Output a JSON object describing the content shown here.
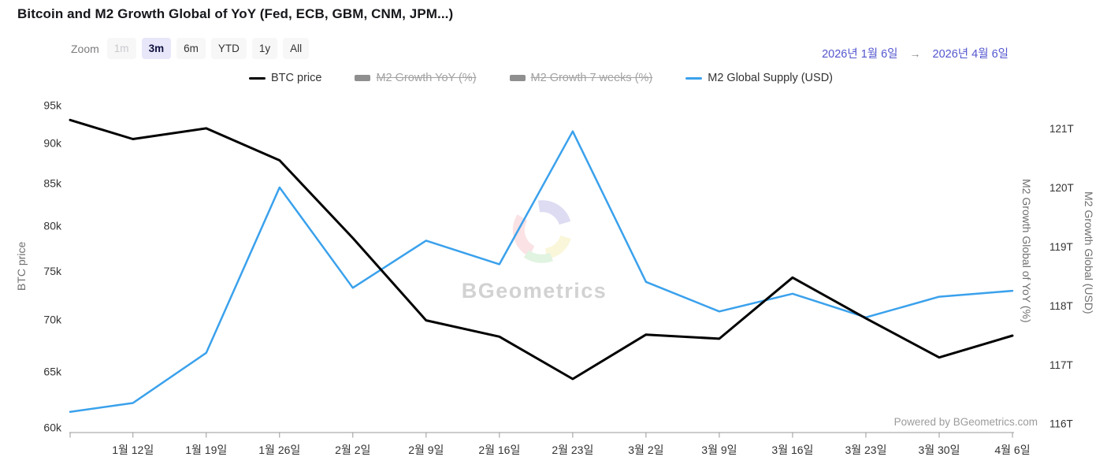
{
  "title": "Bitcoin and M2 Growth Global of YoY (Fed, ECB, GBM, CNM, JPM...)",
  "toolbar": {
    "zoom_label": "Zoom",
    "buttons": [
      {
        "label": "1m",
        "state": "disabled"
      },
      {
        "label": "3m",
        "state": "selected"
      },
      {
        "label": "6m",
        "state": "normal"
      },
      {
        "label": "YTD",
        "state": "normal"
      },
      {
        "label": "1y",
        "state": "normal"
      },
      {
        "label": "All",
        "state": "normal"
      }
    ]
  },
  "date_range": {
    "from": "2026년 1월 6일",
    "arrow": "→",
    "to": "2026년 4월 6일"
  },
  "legend": [
    {
      "label": "BTC price",
      "marker": "line",
      "color": "#000000",
      "active": true
    },
    {
      "label": "M2 Growth YoY (%)",
      "marker": "bar",
      "color": "#8f8f8f",
      "active": false
    },
    {
      "label": "M2 Growth 7 weeks (%)",
      "marker": "bar",
      "color": "#8f8f8f",
      "active": false
    },
    {
      "label": "M2 Global Supply (USD)",
      "marker": "line",
      "color": "#3aa1ec",
      "active": true
    }
  ],
  "watermark": {
    "brand": "BGeometrics"
  },
  "powered_by": "Powered by BGeometrics.com",
  "chart_data": {
    "type": "line",
    "title": "Bitcoin and M2 Growth Global of YoY (Fed, ECB, GBM, CNM, JPM...)",
    "x_axis": {
      "point_dates": [
        "1월 6일",
        "1월 12일",
        "1월 19일",
        "1월 26일",
        "2월 2일",
        "2월 9일",
        "2월 16일",
        "2월 23일",
        "3월 2일",
        "3월 9일",
        "3월 16일",
        "3월 23일",
        "3월 30일",
        "4월 6일"
      ],
      "point_days": [
        0,
        6,
        13,
        20,
        27,
        34,
        41,
        48,
        55,
        62,
        69,
        76,
        83,
        90
      ],
      "ticks": [
        {
          "day": 6,
          "label": "1월 12일"
        },
        {
          "day": 13,
          "label": "1월 19일"
        },
        {
          "day": 20,
          "label": "1월 26일"
        },
        {
          "day": 27,
          "label": "2월 2일"
        },
        {
          "day": 34,
          "label": "2월 9일"
        },
        {
          "day": 41,
          "label": "2월 16일"
        },
        {
          "day": 48,
          "label": "2월 23일"
        },
        {
          "day": 55,
          "label": "3월 2일"
        },
        {
          "day": 62,
          "label": "3월 9일"
        },
        {
          "day": 69,
          "label": "3월 16일"
        },
        {
          "day": 76,
          "label": "3월 23일"
        },
        {
          "day": 83,
          "label": "3월 30일"
        },
        {
          "day": 90,
          "label": "4월 6일"
        }
      ]
    },
    "y_axis_left": {
      "title": "BTC price",
      "scale": "logarithmic",
      "ticks": [
        {
          "value": 60000,
          "label": "60k"
        },
        {
          "value": 65000,
          "label": "65k"
        },
        {
          "value": 70000,
          "label": "70k"
        },
        {
          "value": 75000,
          "label": "75k"
        },
        {
          "value": 80000,
          "label": "80k"
        },
        {
          "value": 85000,
          "label": "85k"
        },
        {
          "value": 90000,
          "label": "90k"
        },
        {
          "value": 95000,
          "label": "95k"
        }
      ],
      "range": [
        60000,
        96500
      ]
    },
    "y_axis_right": {
      "title": "M2 Growth Global (USD)",
      "scale": "linear",
      "unit": "trillion USD",
      "ticks": [
        {
          "value": 116,
          "label": "116T"
        },
        {
          "value": 117,
          "label": "117T"
        },
        {
          "value": 118,
          "label": "118T"
        },
        {
          "value": 119,
          "label": "119T"
        },
        {
          "value": 120,
          "label": "120T"
        },
        {
          "value": 121,
          "label": "121T"
        }
      ],
      "range": [
        115.8,
        121.2
      ]
    },
    "y_axis_right_inner": {
      "title": "M2 Growth Global of YoY (%)",
      "note": "axis title shown for the two hidden (toggled-off) series"
    },
    "series": [
      {
        "name": "BTC price",
        "axis": "left",
        "color": "#000000",
        "visible": true,
        "values": [
          93000,
          90500,
          91900,
          87800,
          78600,
          69900,
          68300,
          64300,
          68500,
          68100,
          74300,
          70100,
          66300,
          68400
        ]
      },
      {
        "name": "M2 Growth YoY (%)",
        "visible": false
      },
      {
        "name": "M2 Growth 7 weeks (%)",
        "visible": false
      },
      {
        "name": "M2 Global Supply (USD)",
        "axis": "right",
        "color": "#3aa1ec",
        "visible": true,
        "values_trillions": [
          116.2,
          116.35,
          117.2,
          120.0,
          118.3,
          119.1,
          118.7,
          120.95,
          118.4,
          117.9,
          118.2,
          117.8,
          118.15,
          118.25
        ]
      }
    ],
    "legend_position": "top-center",
    "grid": false
  }
}
